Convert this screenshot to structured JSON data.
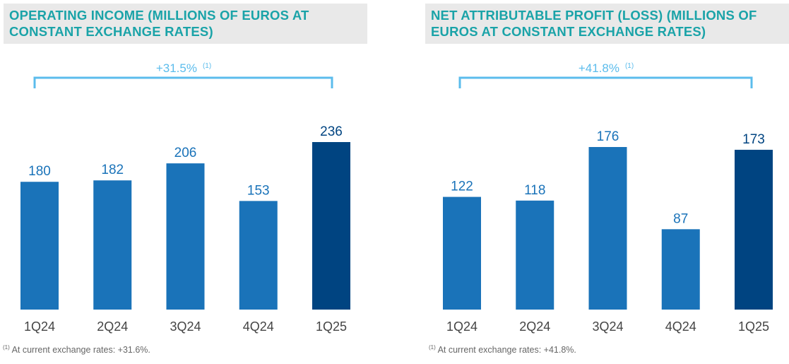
{
  "charts": [
    {
      "title": "OPERATING INCOME (MILLIONS OF EUROS AT CONSTANT EXCHANGE RATES)",
      "growth_label": "+31.5%",
      "growth_note": "(1)",
      "footnote_marker": "(1)",
      "footnote_text": " At current exchange rates: +31.6%."
    },
    {
      "title": "NET ATTRIBUTABLE PROFIT (LOSS) (MILLIONS OF EUROS AT CONSTANT EXCHANGE RATES)",
      "growth_label": "+41.8%",
      "growth_note": "(1)",
      "footnote_marker": "(1)",
      "footnote_text": " At current exchange rates: +41.8%."
    }
  ],
  "colors": {
    "bar": "#1a73b9",
    "bar_highlight": "#004481",
    "title": "#1aa3a8",
    "bracket": "#5bbcec",
    "value_label": "#1a73b9",
    "value_label_highlight": "#004481",
    "category_label": "#444444"
  },
  "chart_data": [
    {
      "type": "bar",
      "title": "OPERATING INCOME (MILLIONS OF EUROS AT CONSTANT EXCHANGE RATES)",
      "categories": [
        "1Q24",
        "2Q24",
        "3Q24",
        "4Q24",
        "1Q25"
      ],
      "values": [
        180,
        182,
        206,
        153,
        236
      ],
      "highlight_index": 4,
      "annotation": "+31.5% (1)",
      "xlabel": "",
      "ylabel": "Millions of euros",
      "ylim": [
        0,
        236
      ]
    },
    {
      "type": "bar",
      "title": "NET ATTRIBUTABLE PROFIT (LOSS) (MILLIONS OF EUROS AT CONSTANT EXCHANGE RATES)",
      "categories": [
        "1Q24",
        "2Q24",
        "3Q24",
        "4Q24",
        "1Q25"
      ],
      "values": [
        122,
        118,
        176,
        87,
        173
      ],
      "highlight_index": 4,
      "annotation": "+41.8% (1)",
      "xlabel": "",
      "ylabel": "Millions of euros",
      "ylim": [
        0,
        176
      ]
    }
  ]
}
